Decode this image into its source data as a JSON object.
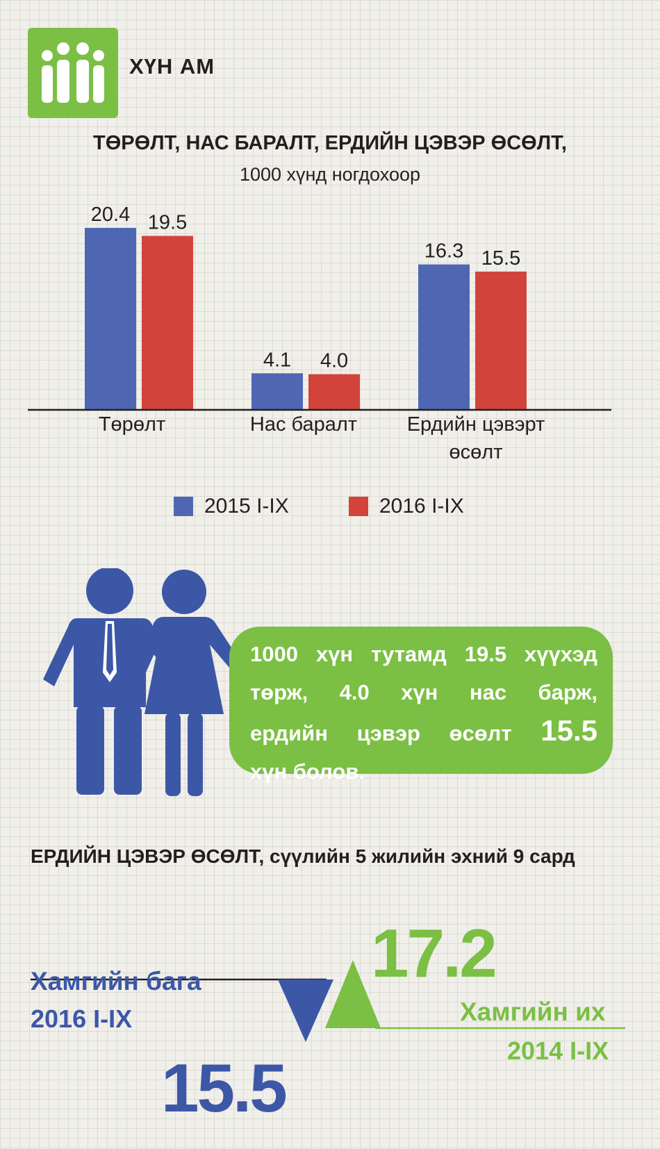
{
  "header": {
    "icon": "people-group-icon",
    "title": "ХҮН АМ"
  },
  "chart_data": {
    "type": "bar",
    "title": "ТӨРӨЛТ, НАС БАРАЛТ, ЕРДИЙН ЦЭВЭР ӨСӨЛТ,",
    "subtitle": "1000 хүнд ногдохоор",
    "categories": [
      "Төрөлт",
      "Нас баралт",
      "Ердийн цэвэрт өсөлт"
    ],
    "series": [
      {
        "name": "2015 I-IX",
        "color": "#4f67b2",
        "values": [
          20.4,
          4.1,
          16.3
        ],
        "labels": [
          "20.4",
          "4.1",
          "16.3"
        ]
      },
      {
        "name": "2016 I-IX",
        "color": "#d2443b",
        "values": [
          19.5,
          4.0,
          15.5
        ],
        "labels": [
          "19.5",
          "4.0",
          "15.5"
        ]
      }
    ],
    "ylim": [
      0,
      20.4
    ],
    "grid": false,
    "legend_placement": "bottom"
  },
  "callout": {
    "line1": "1000 хүн тутамд 19.5 хүүхэд",
    "line2": "төрж, 4.0 хүн нас барж,",
    "line3_text": "ердийн цэвэр өсөлт ",
    "line3_value": "15.5",
    "line4": "хүн болов."
  },
  "growth": {
    "title": "ЕРДИЙН ЦЭВЭР ӨСӨЛТ, сүүлийн 5 жилийн эхний 9 сард",
    "min_label": "Хамгийн бага",
    "min_period": "2016 I-IX",
    "min_value": "15.5",
    "max_label": "Хамгийн их",
    "max_period": "2014 I-IX",
    "max_value": "17.2",
    "colors": {
      "min": "#3d57a7",
      "max": "#7bbf44"
    }
  },
  "colors": {
    "brand_green": "#7bbf44",
    "blue": "#4f67b2",
    "red": "#d2443b"
  }
}
